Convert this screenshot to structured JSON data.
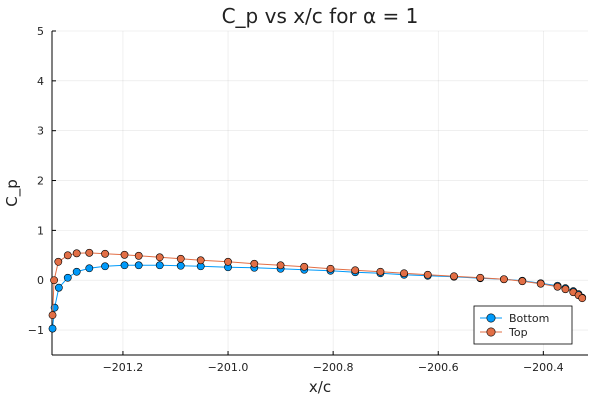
{
  "chart_data": {
    "type": "scatter",
    "title": "C_p vs x/c for α = 1",
    "xlabel": "x/c",
    "ylabel": "C_p",
    "xlim": [
      -201.335,
      -200.315
    ],
    "ylim": [
      -1.5,
      5
    ],
    "xticks": [
      -201.2,
      -201.0,
      -200.8,
      -200.6,
      -200.4
    ],
    "xtick_labels": [
      "−201.2",
      "−201.0",
      "−200.8",
      "−200.6",
      "−200.4"
    ],
    "yticks": [
      -1,
      0,
      1,
      2,
      3,
      4,
      5
    ],
    "ytick_labels": [
      "−1",
      "0",
      "1",
      "2",
      "3",
      "4",
      "5"
    ],
    "grid": true,
    "legend_position": "bottom-right",
    "series": [
      {
        "name": "Bottom",
        "color": "#009AFA",
        "points": [
          [
            -201.334,
            -0.97
          ],
          [
            -201.33,
            -0.55
          ],
          [
            -201.322,
            -0.15
          ],
          [
            -201.305,
            0.05
          ],
          [
            -201.288,
            0.17
          ],
          [
            -201.264,
            0.24
          ],
          [
            -201.234,
            0.28
          ],
          [
            -201.197,
            0.3
          ],
          [
            -201.17,
            0.3
          ],
          [
            -201.13,
            0.3
          ],
          [
            -201.09,
            0.29
          ],
          [
            -201.052,
            0.28
          ],
          [
            -201.0,
            0.26
          ],
          [
            -200.95,
            0.25
          ],
          [
            -200.9,
            0.23
          ],
          [
            -200.855,
            0.21
          ],
          [
            -200.805,
            0.19
          ],
          [
            -200.758,
            0.16
          ],
          [
            -200.71,
            0.14
          ],
          [
            -200.665,
            0.11
          ],
          [
            -200.62,
            0.09
          ],
          [
            -200.57,
            0.07
          ],
          [
            -200.52,
            0.04
          ],
          [
            -200.475,
            0.02
          ],
          [
            -200.44,
            -0.01
          ],
          [
            -200.405,
            -0.06
          ],
          [
            -200.373,
            -0.11
          ],
          [
            -200.358,
            -0.16
          ],
          [
            -200.343,
            -0.22
          ],
          [
            -200.333,
            -0.28
          ],
          [
            -200.326,
            -0.35
          ]
        ]
      },
      {
        "name": "Top",
        "color": "#E26F46",
        "points": [
          [
            -201.334,
            -0.7
          ],
          [
            -201.331,
            0.0
          ],
          [
            -201.323,
            0.37
          ],
          [
            -201.305,
            0.5
          ],
          [
            -201.288,
            0.54
          ],
          [
            -201.264,
            0.55
          ],
          [
            -201.234,
            0.53
          ],
          [
            -201.197,
            0.51
          ],
          [
            -201.17,
            0.49
          ],
          [
            -201.13,
            0.46
          ],
          [
            -201.09,
            0.43
          ],
          [
            -201.052,
            0.4
          ],
          [
            -201.0,
            0.37
          ],
          [
            -200.95,
            0.33
          ],
          [
            -200.9,
            0.3
          ],
          [
            -200.855,
            0.27
          ],
          [
            -200.805,
            0.23
          ],
          [
            -200.758,
            0.2
          ],
          [
            -200.71,
            0.17
          ],
          [
            -200.665,
            0.14
          ],
          [
            -200.62,
            0.11
          ],
          [
            -200.57,
            0.08
          ],
          [
            -200.52,
            0.05
          ],
          [
            -200.475,
            0.02
          ],
          [
            -200.44,
            -0.02
          ],
          [
            -200.405,
            -0.07
          ],
          [
            -200.373,
            -0.13
          ],
          [
            -200.358,
            -0.18
          ],
          [
            -200.343,
            -0.24
          ],
          [
            -200.333,
            -0.3
          ],
          [
            -200.326,
            -0.36
          ]
        ]
      }
    ]
  }
}
